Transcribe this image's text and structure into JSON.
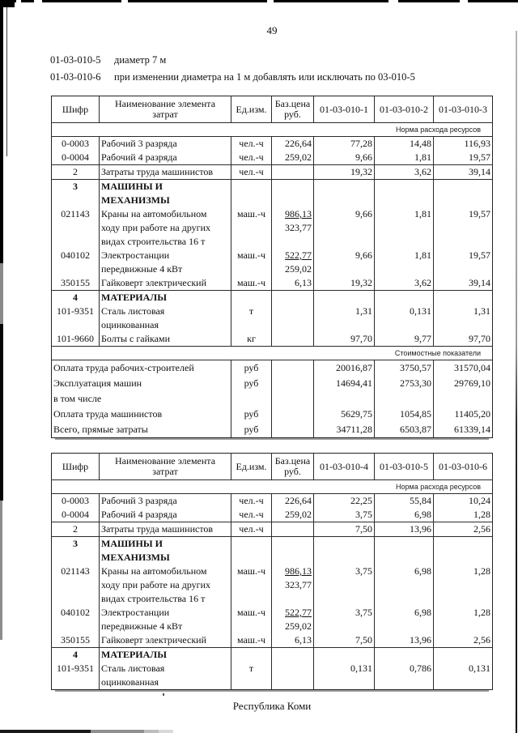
{
  "page": {
    "number": "49",
    "footer": "Республика Коми"
  },
  "intro": {
    "lines": [
      {
        "code": "01-03-010-5",
        "text": "диаметр 7 м"
      },
      {
        "code": "01-03-010-6",
        "text": "при изменении диаметра на 1 м добавлять или исключать по 03-010-5"
      }
    ]
  },
  "tables": [
    {
      "columns": [
        "Шифр",
        "Наименование элемента\nзатрат",
        "Ед.изм.",
        "Баз.цена\nруб.",
        "01-03-010-1",
        "01-03-010-2",
        "01-03-010-3"
      ],
      "rows": [
        {
          "type": "band",
          "label": "Норма расхода ресурсов"
        },
        {
          "type": "data",
          "code": "0-0003",
          "name": "Рабочий 3 разряда",
          "unit": "чел.-ч",
          "base": "226,64",
          "values": [
            "77,28",
            "14,48",
            "116,93"
          ]
        },
        {
          "type": "data",
          "code": "0-0004",
          "name": "Рабочий 4 разряда",
          "unit": "чел.-ч",
          "base": "259,02",
          "values": [
            "9,66",
            "1,81",
            "19,57"
          ]
        },
        {
          "type": "data",
          "code": "2",
          "code_bold": true,
          "sep": true,
          "name": "Затраты труда машинистов",
          "unit": "чел.-ч",
          "base": "",
          "values": [
            "19,32",
            "3,62",
            "39,14"
          ]
        },
        {
          "type": "section",
          "code": "3",
          "sep": true,
          "name": "МАШИНЫ И\nМЕХАНИЗМЫ"
        },
        {
          "type": "data",
          "code": "021143",
          "name": "Краны на автомобильном\nходу при работе на других\nвидах строительства 16 т",
          "unit": "маш.-ч",
          "base": {
            "top": "986,13",
            "bottom": "323,77"
          },
          "values": [
            "9,66",
            "1,81",
            "19,57"
          ]
        },
        {
          "type": "data",
          "code": "040102",
          "name": "Электростанции\nпередвижные 4 кВт",
          "unit": "маш.-ч",
          "base": {
            "top": "522,77",
            "bottom": "259,02"
          },
          "values": [
            "9,66",
            "1,81",
            "19,57"
          ]
        },
        {
          "type": "data",
          "code": "350155",
          "name": "Гайковерт электрический",
          "unit": "маш.-ч",
          "base": "6,13",
          "values": [
            "19,32",
            "3,62",
            "39,14"
          ]
        },
        {
          "type": "section",
          "code": "4",
          "sep": true,
          "name": "МАТЕРИАЛЫ"
        },
        {
          "type": "data",
          "code": "101-9351",
          "name": "Сталь листовая\nоцинкованная",
          "unit": "т",
          "base": "",
          "values": [
            "1,31",
            "0,131",
            "1,31"
          ]
        },
        {
          "type": "data",
          "code": "101-9660",
          "name": "Болты с гайками",
          "unit": "кг",
          "base": "",
          "values": [
            "97,70",
            "9,77",
            "97,70"
          ]
        },
        {
          "type": "band",
          "label": "Стоимостные показатели"
        },
        {
          "type": "cost",
          "bold": true,
          "label": "Оплата труда рабочих-строителей",
          "unit": "руб",
          "values": [
            "20016,87",
            "3750,57",
            "31570,04"
          ]
        },
        {
          "type": "cost",
          "bold": true,
          "label": "Эксплуатация машин",
          "unit": "руб",
          "values": [
            "14694,41",
            "2753,30",
            "29769,10"
          ]
        },
        {
          "type": "cost",
          "bold": false,
          "label": "в том числе",
          "unit": "",
          "values": [
            "",
            "",
            ""
          ]
        },
        {
          "type": "cost",
          "bold": false,
          "label": "Оплата труда машинистов",
          "unit": "руб",
          "values": [
            "5629,75",
            "1054,85",
            "11405,20"
          ]
        },
        {
          "type": "cost",
          "bold": true,
          "label": "Всего, прямые затраты",
          "unit": "руб",
          "values": [
            "34711,28",
            "6503,87",
            "61339,14"
          ]
        }
      ]
    },
    {
      "columns": [
        "Шифр",
        "Наименование элемента\nзатрат",
        "Ед.изм.",
        "Баз.цена\nруб.",
        "01-03-010-4",
        "01-03-010-5",
        "01-03-010-6"
      ],
      "rows": [
        {
          "type": "band",
          "label": "Норма расхода ресурсов"
        },
        {
          "type": "data",
          "code": "0-0003",
          "name": "Рабочий 3 разряда",
          "unit": "чел.-ч",
          "base": "226,64",
          "values": [
            "22,25",
            "55,84",
            "10,24"
          ]
        },
        {
          "type": "data",
          "code": "0-0004",
          "name": "Рабочий 4 разряда",
          "unit": "чел.-ч",
          "base": "259,02",
          "values": [
            "3,75",
            "6,98",
            "1,28"
          ]
        },
        {
          "type": "data",
          "code": "2",
          "code_bold": true,
          "sep": true,
          "name": "Затраты труда машинистов",
          "unit": "чел.-ч",
          "base": "",
          "values": [
            "7,50",
            "13,96",
            "2,56"
          ]
        },
        {
          "type": "section",
          "code": "3",
          "sep": true,
          "name": "МАШИНЫ И\nМЕХАНИЗМЫ"
        },
        {
          "type": "data",
          "code": "021143",
          "name": "Краны на автомобильном\nходу при работе на других\nвидах строительства 16 т",
          "unit": "маш.-ч",
          "base": {
            "top": "986,13",
            "bottom": "323,77"
          },
          "values": [
            "3,75",
            "6,98",
            "1,28"
          ]
        },
        {
          "type": "data",
          "code": "040102",
          "name": "Электростанции\nпередвижные 4 кВт",
          "unit": "маш.-ч",
          "base": {
            "top": "522,77",
            "bottom": "259,02"
          },
          "values": [
            "3,75",
            "6,98",
            "1,28"
          ]
        },
        {
          "type": "data",
          "code": "350155",
          "name": "Гайковерт электрический",
          "unit": "маш.-ч",
          "base": "6,13",
          "values": [
            "7,50",
            "13,96",
            "2,56"
          ]
        },
        {
          "type": "section",
          "code": "4",
          "sep": true,
          "name": "МАТЕРИАЛЫ"
        },
        {
          "type": "data",
          "code": "101-9351",
          "name": "Сталь листовая\nоцинкованная",
          "unit": "т",
          "base": "",
          "values": [
            "0,131",
            "0,786",
            "0,131"
          ]
        }
      ]
    }
  ]
}
